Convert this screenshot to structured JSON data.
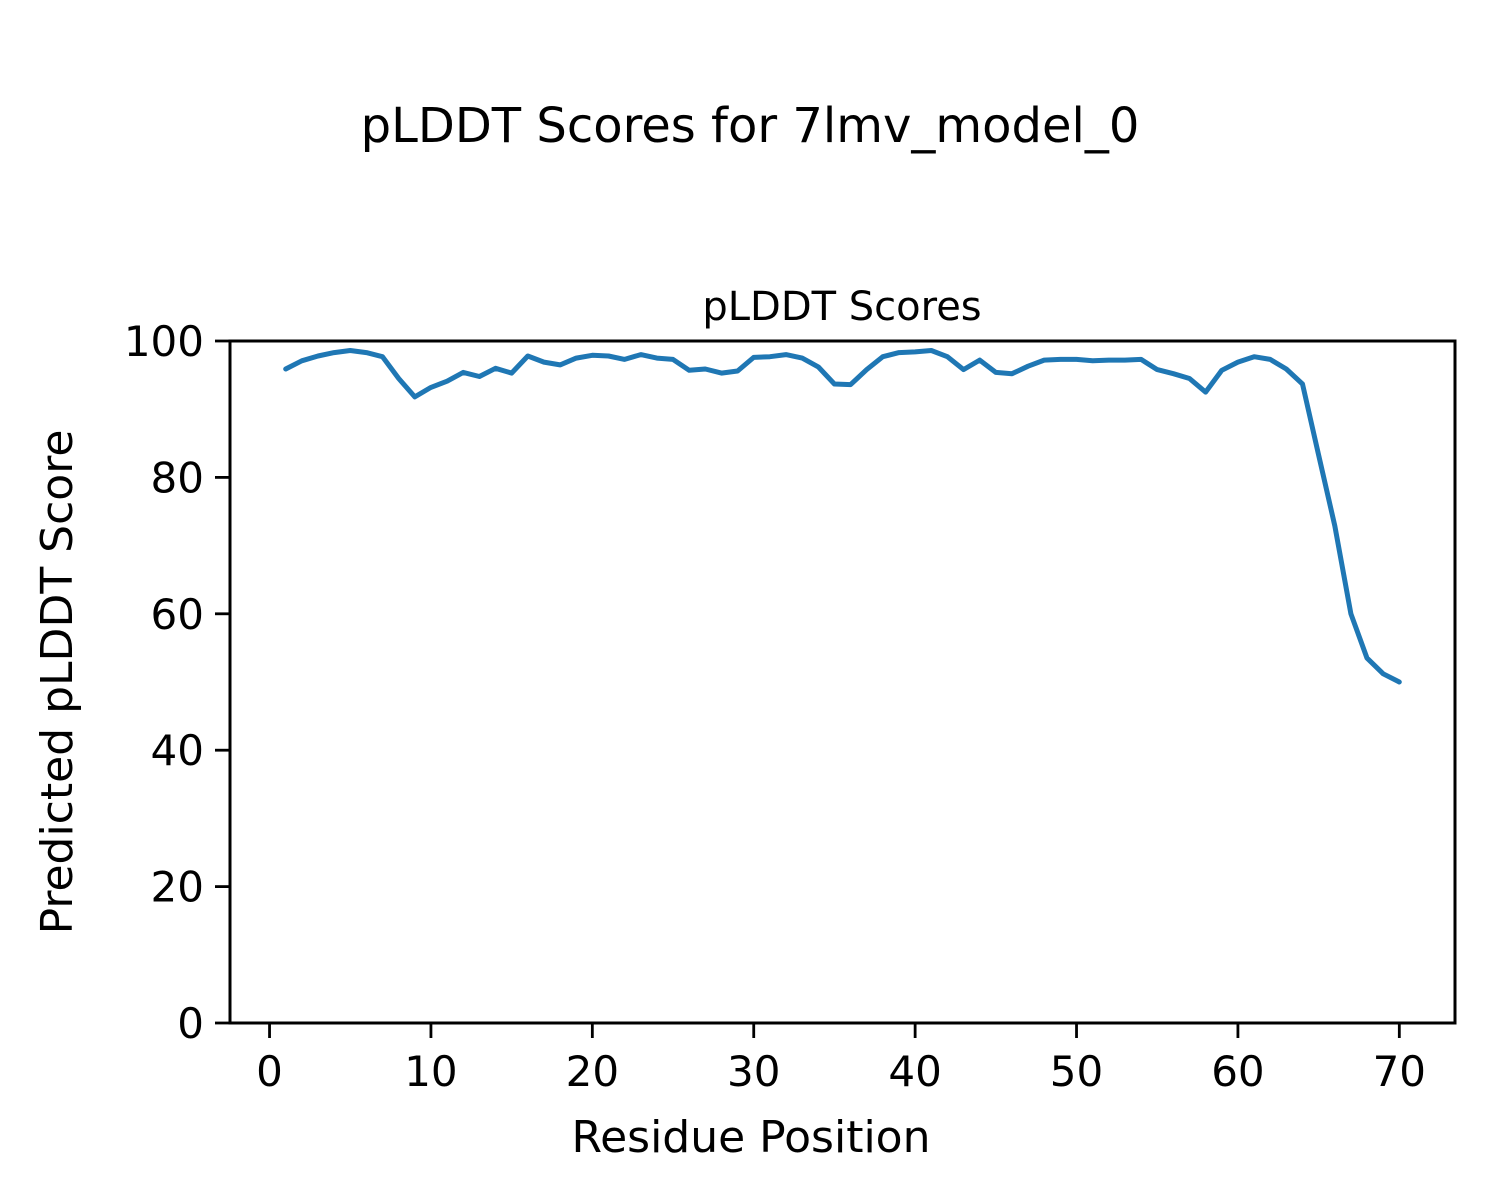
{
  "figure": {
    "background_color": "#ffffff",
    "suptitle": "pLDDT Scores for 7lmv_model_0"
  },
  "chart_data": {
    "type": "line",
    "title": "pLDDT Scores",
    "xlabel": "Residue Position",
    "ylabel": "Predicted pLDDT Score",
    "x": [
      1,
      2,
      3,
      4,
      5,
      6,
      7,
      8,
      9,
      10,
      11,
      12,
      13,
      14,
      15,
      16,
      17,
      18,
      19,
      20,
      21,
      22,
      23,
      24,
      25,
      26,
      27,
      28,
      29,
      30,
      31,
      32,
      33,
      34,
      35,
      36,
      37,
      38,
      39,
      40,
      41,
      42,
      43,
      44,
      45,
      46,
      47,
      48,
      49,
      50,
      51,
      52,
      53,
      54,
      55,
      56,
      57,
      58,
      59,
      60,
      61,
      62,
      63,
      64,
      65,
      66,
      67,
      68,
      69,
      70
    ],
    "y": [
      95.9,
      97.1,
      97.8,
      98.3,
      98.6,
      98.3,
      97.7,
      94.5,
      91.8,
      93.2,
      94.1,
      95.4,
      94.8,
      96.0,
      95.3,
      97.8,
      96.9,
      96.5,
      97.5,
      97.9,
      97.8,
      97.3,
      98.0,
      97.5,
      97.3,
      95.7,
      95.9,
      95.3,
      95.6,
      97.6,
      97.7,
      98.0,
      97.5,
      96.2,
      93.7,
      93.6,
      95.8,
      97.7,
      98.3,
      98.4,
      98.6,
      97.7,
      95.8,
      97.2,
      95.4,
      95.2,
      96.3,
      97.2,
      97.3,
      97.3,
      97.1,
      97.2,
      97.2,
      97.3,
      95.8,
      95.2,
      94.5,
      92.5,
      95.7,
      96.9,
      97.7,
      97.3,
      95.9,
      93.7,
      83.3,
      72.9,
      60.0,
      53.5,
      51.2,
      50.0
    ],
    "xlim": [
      -2.45,
      73.45
    ],
    "ylim": [
      0,
      100
    ],
    "xticks": [
      0,
      10,
      20,
      30,
      40,
      50,
      60,
      70
    ],
    "yticks": [
      0,
      20,
      40,
      60,
      80,
      100
    ],
    "line_color": "#1f77b4",
    "axis_color": "#000000",
    "grid": false,
    "legend": null
  }
}
